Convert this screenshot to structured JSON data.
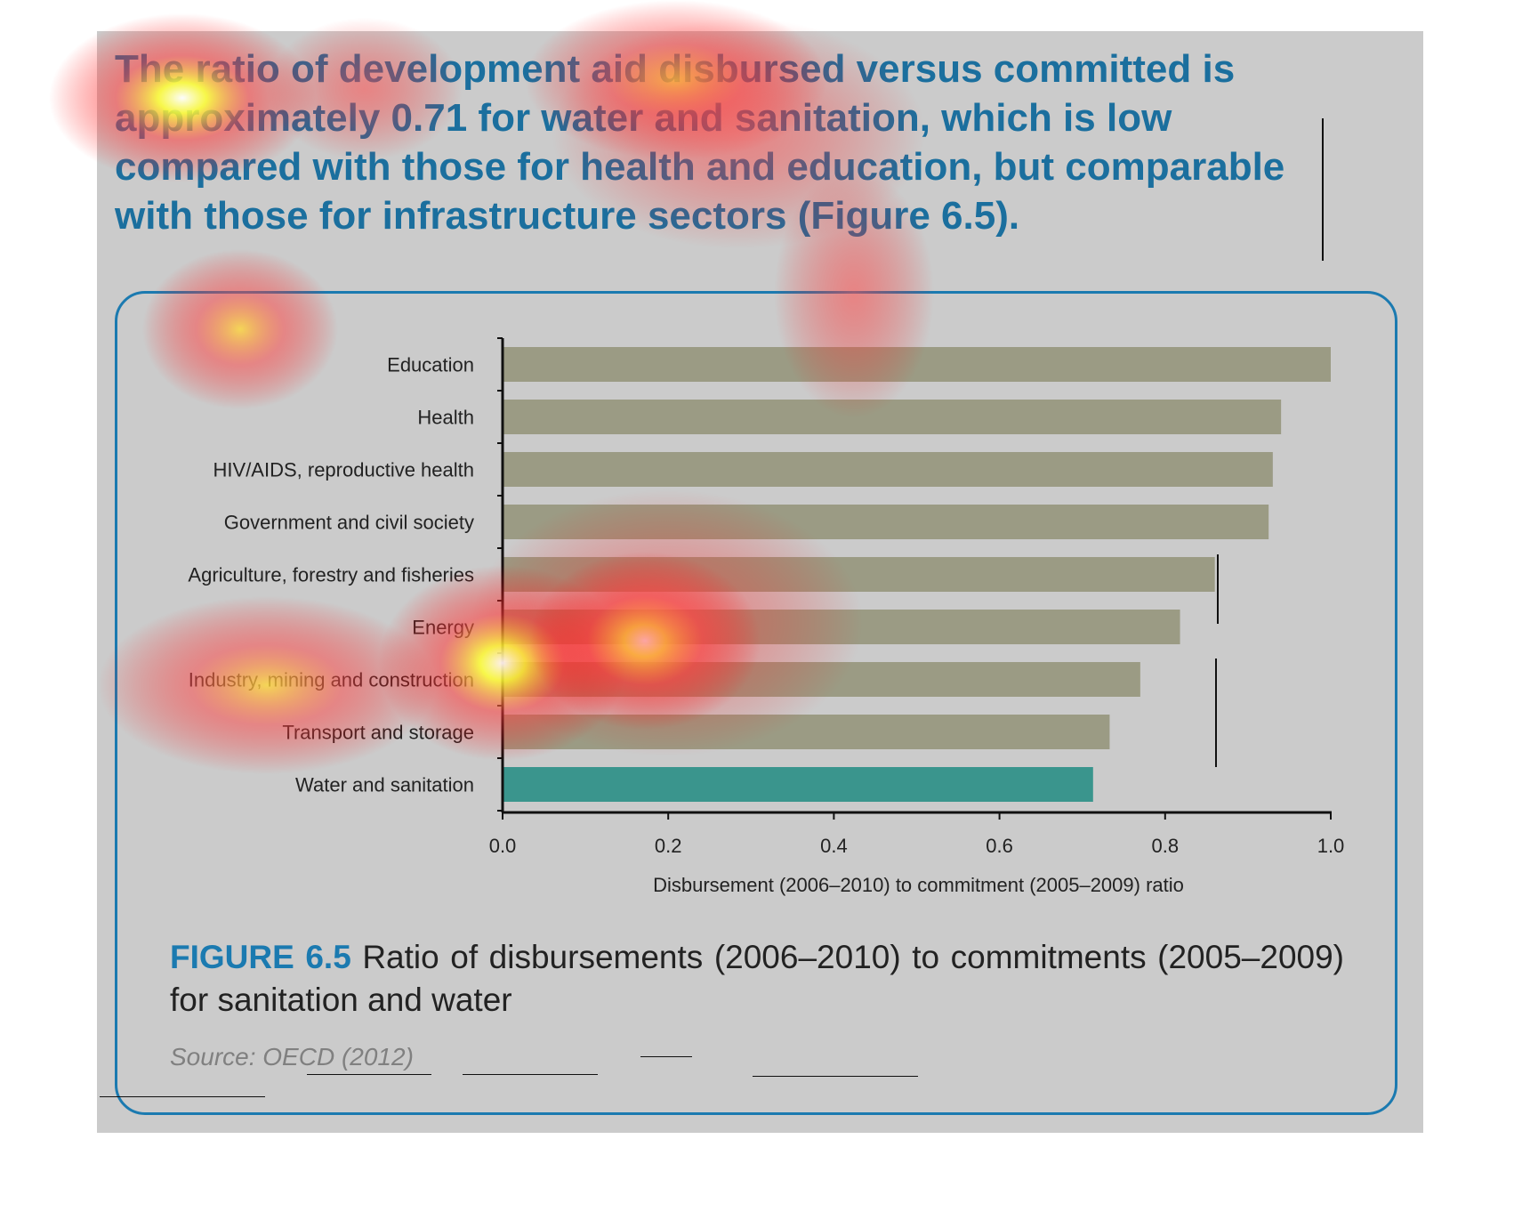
{
  "headline": "The ratio of development aid disbursed versus committed is approximately 0.71 for water and sanitation, which is low compared with those for health and education, but comparable with those for infrastructure sectors (Figure 6.5).",
  "caption": {
    "figure_label": "FIGURE 6.5",
    "text": " Ratio of disbursements (2006–2010) to commitments (2005–2009) for sanitation and water"
  },
  "source": "Source: OECD (2012)",
  "colors": {
    "bar": "#9b9b84",
    "highlight_bar": "#3a958d",
    "headline": "#1b6f9e",
    "frame": "#1b7ab0",
    "panel": "#cbcbcb"
  },
  "chart_data": {
    "type": "bar",
    "orientation": "horizontal",
    "categories": [
      "Education",
      "Health",
      "HIV/AIDS, reproductive health",
      "Government and civil society",
      "Agriculture, forestry and fisheries",
      "Energy",
      "Industry, mining and construction",
      "Transport and storage",
      "Water and sanitation"
    ],
    "values": [
      1.0,
      0.94,
      0.93,
      0.925,
      0.86,
      0.818,
      0.77,
      0.733,
      0.713
    ],
    "highlight": "Water and sanitation",
    "xlabel": "Disbursement (2006–2010) to commitment (2005–2009) ratio",
    "ylabel": "",
    "xlim": [
      0.0,
      1.0
    ],
    "xticks": [
      "0.0",
      "0.2",
      "0.4",
      "0.6",
      "0.8",
      "1.0"
    ],
    "grid": false,
    "legend": "none"
  }
}
